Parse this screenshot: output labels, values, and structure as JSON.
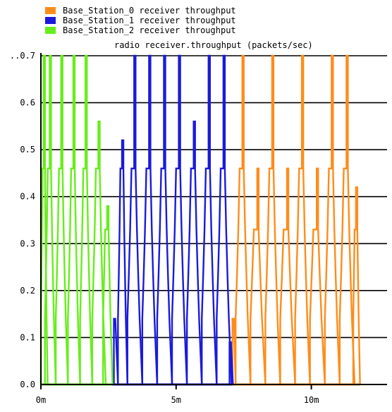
{
  "chart_data": {
    "type": "line",
    "title": "radio receiver.throughput (packets/sec)",
    "xlabel": "",
    "ylabel": "",
    "ylim": [
      0,
      0.7
    ],
    "xlim_minutes": [
      0,
      12.8
    ],
    "y_ticks": [
      {
        "value": 0.0,
        "label": "0.0"
      },
      {
        "value": 0.1,
        "label": "0.1"
      },
      {
        "value": 0.2,
        "label": "0.2"
      },
      {
        "value": 0.3,
        "label": "0.3"
      },
      {
        "value": 0.4,
        "label": "0.4"
      },
      {
        "value": 0.5,
        "label": "0.5"
      },
      {
        "value": 0.6,
        "label": "0.6"
      },
      {
        "value": 0.7,
        "label": "..0.7"
      }
    ],
    "x_ticks": [
      {
        "value": 0,
        "label": "0m"
      },
      {
        "value": 5,
        "label": "5m"
      },
      {
        "value": 10,
        "label": "10m"
      }
    ],
    "grid": true,
    "legend_position": "top-left",
    "series": [
      {
        "name": "Base_Station_0 receiver throughput",
        "color": "#ff8c1a",
        "bursts": [
          {
            "start": 7.02,
            "end": 7.2,
            "peak": 0.14
          },
          {
            "start": 7.2,
            "end": 7.75,
            "peak": 0.7
          },
          {
            "start": 7.75,
            "end": 8.3,
            "peak": 0.46
          },
          {
            "start": 8.3,
            "end": 8.85,
            "peak": 0.7
          },
          {
            "start": 8.85,
            "end": 9.4,
            "peak": 0.46
          },
          {
            "start": 9.4,
            "end": 9.95,
            "peak": 0.7
          },
          {
            "start": 9.95,
            "end": 10.5,
            "peak": 0.46
          },
          {
            "start": 10.5,
            "end": 11.05,
            "peak": 0.7
          },
          {
            "start": 11.05,
            "end": 11.6,
            "peak": 0.7
          },
          {
            "start": 11.55,
            "end": 11.8,
            "peak": 0.42
          }
        ]
      },
      {
        "name": "Base_Station_1 receiver throughput",
        "color": "#1a1adc",
        "bursts": [
          {
            "start": 2.6,
            "end": 2.85,
            "peak": 0.14
          },
          {
            "start": 2.85,
            "end": 3.2,
            "peak": 0.52
          },
          {
            "start": 3.2,
            "end": 3.75,
            "peak": 0.7
          },
          {
            "start": 3.75,
            "end": 4.3,
            "peak": 0.7
          },
          {
            "start": 4.3,
            "end": 4.85,
            "peak": 0.7
          },
          {
            "start": 4.85,
            "end": 5.4,
            "peak": 0.7
          },
          {
            "start": 5.4,
            "end": 5.95,
            "peak": 0.56
          },
          {
            "start": 5.95,
            "end": 6.5,
            "peak": 0.7
          },
          {
            "start": 6.5,
            "end": 7.05,
            "peak": 0.7
          },
          {
            "start": 6.9,
            "end": 7.1,
            "peak": 0.09
          }
        ]
      },
      {
        "name": "Base_Station_2 receiver throughput",
        "color": "#66ee1a",
        "bursts": [
          {
            "start": 0.0,
            "end": 0.25,
            "peak": 0.7
          },
          {
            "start": 0.15,
            "end": 0.55,
            "peak": 0.7
          },
          {
            "start": 0.55,
            "end": 1.0,
            "peak": 0.7
          },
          {
            "start": 1.0,
            "end": 1.45,
            "peak": 0.7
          },
          {
            "start": 1.45,
            "end": 1.9,
            "peak": 0.7
          },
          {
            "start": 1.9,
            "end": 2.4,
            "peak": 0.56
          },
          {
            "start": 2.3,
            "end": 2.65,
            "peak": 0.38
          }
        ]
      }
    ]
  }
}
